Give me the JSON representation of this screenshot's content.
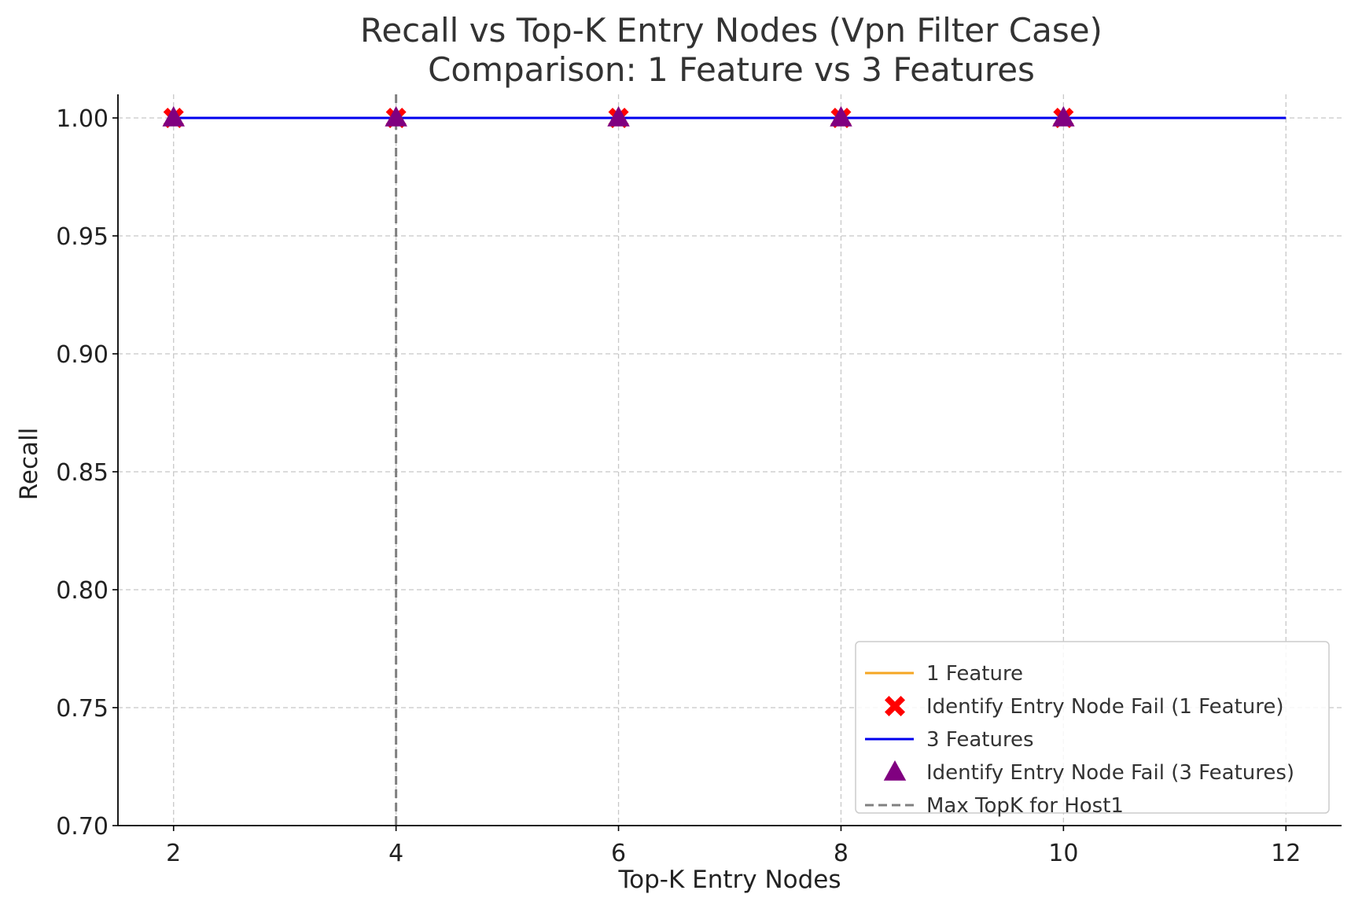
{
  "chart_data": {
    "type": "line",
    "title": "Recall vs Top-K Entry Nodes (Vpn Filter Case)",
    "subtitle": "Comparison: 1 Feature vs 3 Features",
    "xlabel": "Top-K Entry Nodes",
    "ylabel": "Recall",
    "xlim": [
      1.5,
      12.5
    ],
    "ylim": [
      0.7,
      1.01
    ],
    "xticks": [
      2,
      4,
      6,
      8,
      10,
      12
    ],
    "xtick_labels": [
      "2",
      "4",
      "6",
      "8",
      "10",
      "12"
    ],
    "yticks": [
      0.7,
      0.75,
      0.8,
      0.85,
      0.9,
      0.95,
      1.0
    ],
    "ytick_labels": [
      "0.70",
      "0.75",
      "0.80",
      "0.85",
      "0.90",
      "0.95",
      "1.00"
    ],
    "grid": true,
    "legend_position": "lower-right",
    "series": [
      {
        "name": "1 Feature",
        "kind": "line",
        "color": "#f5a623",
        "x": [
          2,
          4,
          6,
          8,
          10,
          12
        ],
        "y": [
          1.0,
          1.0,
          1.0,
          1.0,
          1.0,
          1.0
        ]
      },
      {
        "name": "Identify Entry Node Fail (1 Feature)",
        "kind": "marker",
        "marker": "x",
        "color": "#ff0000",
        "x": [
          2,
          4,
          6,
          8,
          10
        ],
        "y": [
          1.0,
          1.0,
          1.0,
          1.0,
          1.0
        ]
      },
      {
        "name": "3 Features",
        "kind": "line",
        "color": "#0000ee",
        "x": [
          2,
          4,
          6,
          8,
          10,
          12
        ],
        "y": [
          1.0,
          1.0,
          1.0,
          1.0,
          1.0,
          1.0
        ]
      },
      {
        "name": "Identify Entry Node Fail (3 Features)",
        "kind": "marker",
        "marker": "triangle",
        "color": "#800080",
        "x": [
          2,
          4,
          6,
          8,
          10
        ],
        "y": [
          1.0,
          1.0,
          1.0,
          1.0,
          1.0
        ]
      },
      {
        "name": "Max TopK for Host1",
        "kind": "vline",
        "color": "#808080",
        "x": 4
      }
    ]
  }
}
